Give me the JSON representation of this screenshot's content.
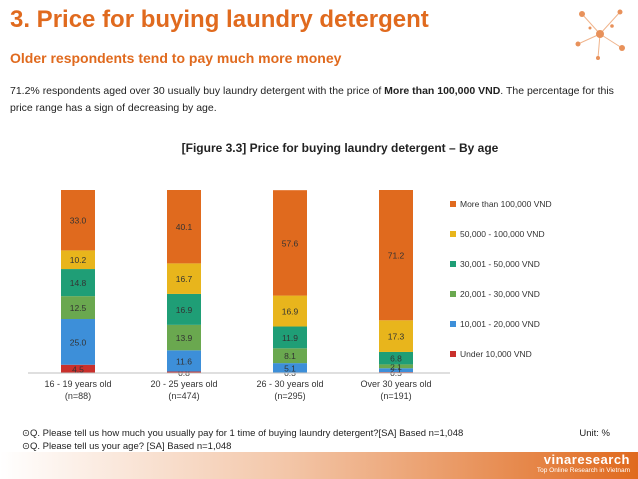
{
  "header": {
    "title": "3. Price for buying laundry detergent",
    "subtitle": "Older respondents tend to pay much more money",
    "desc_prefix": "71.2% respondents aged over 30 usually buy laundry detergent with the price of ",
    "desc_bold": "More than 100,000 VND",
    "desc_suffix": ". The percentage for this price range has a sign of decreasing by age."
  },
  "figure_title": "[Figure 3.3] Price for buying laundry detergent – By age",
  "footnotes": [
    "⊙Q. Please tell us how much you usually pay for 1 time of buying laundry detergent?[SA] Based n=1,048",
    "⊙Q. Please tell us your age? [SA] Based n=1,048"
  ],
  "unit": "Unit: %",
  "logo": {
    "name": "vinaresearch",
    "tagline": "Top Online Research in Vietnam"
  },
  "colors": {
    "accent": "#e06a1e",
    "series": [
      "#c9302c",
      "#3d8fd9",
      "#6aa84f",
      "#1f9e76",
      "#e8b51c",
      "#e06a1e"
    ]
  },
  "chart_data": {
    "type": "bar",
    "stacked": true,
    "categories": [
      [
        "16 - 19 years old",
        "(n=88)"
      ],
      [
        "20 - 25 years old",
        "(n=474)"
      ],
      [
        "26 - 30 years old",
        "(n=295)"
      ],
      [
        "Over 30 years old",
        "(n=191)"
      ]
    ],
    "series": [
      {
        "name": "Under 10,000 VND",
        "values": [
          4.5,
          0.8,
          0.3,
          0.5
        ]
      },
      {
        "name": "10,001 - 20,000 VND",
        "values": [
          25.0,
          11.6,
          5.1,
          2.1
        ]
      },
      {
        "name": "20,001 - 30,000 VND",
        "values": [
          12.5,
          13.9,
          8.1,
          2.1
        ]
      },
      {
        "name": "30,001 - 50,000 VND",
        "values": [
          14.8,
          16.9,
          11.9,
          6.8
        ]
      },
      {
        "name": "50,000 - 100,000 VND",
        "values": [
          10.2,
          16.7,
          16.9,
          17.3
        ]
      },
      {
        "name": "More than 100,000 VND",
        "values": [
          33.0,
          40.1,
          57.6,
          71.2
        ]
      }
    ],
    "value_labels": [
      [
        "4.5",
        "0.8",
        "0.3",
        "0.5"
      ],
      [
        "25.0",
        "11.6",
        "5.1",
        "2.1"
      ],
      [
        "12.5",
        "13.9",
        "8.1",
        "2.1"
      ],
      [
        "14.8",
        "16.9",
        "11.9",
        "6.8"
      ],
      [
        "10.2",
        "16.7",
        "16.9",
        "17.3"
      ],
      [
        "33.0",
        "40.1",
        "57.6",
        "71.2"
      ]
    ],
    "ylim": [
      0,
      100
    ],
    "legend_position": "right",
    "grid": false
  }
}
